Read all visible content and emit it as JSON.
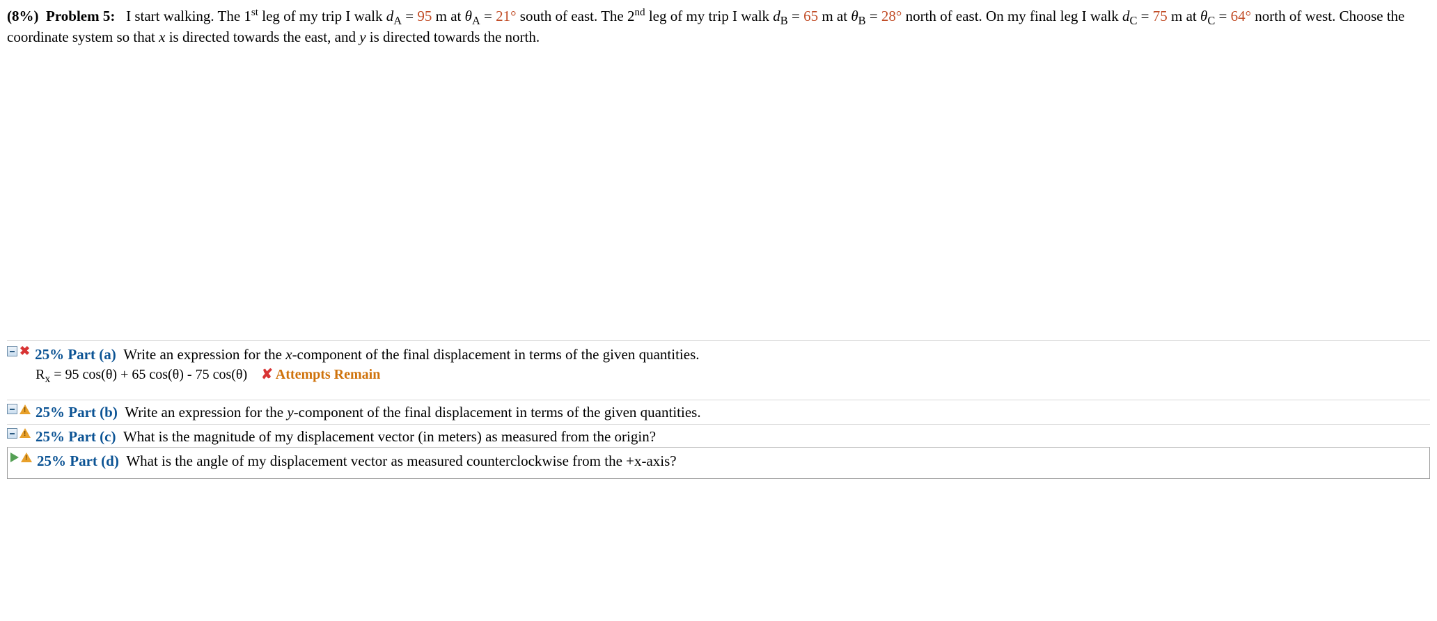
{
  "problem": {
    "percent": "(8%)",
    "label": "Problem 5:",
    "text_prefix": "I start walking. The 1",
    "sup_st": "st",
    "text_1": " leg of my trip I walk ",
    "dA_sym": "d",
    "dA_sub": "A",
    "eq": " = ",
    "dA_val": "95",
    "m_at": " m at ",
    "thA_sym": "θ",
    "thA_sub": "A",
    "thA_val": "21",
    "deg": "°",
    "dirA": " south of east. The 2",
    "sup_nd": "nd",
    "text_2": " leg of my trip I walk ",
    "dB_sym": "d",
    "dB_sub": "B",
    "dB_val": "65",
    "thB_sym": "θ",
    "thB_sub": "B",
    "thB_val": "28",
    "dirB": " north of east. On my final leg I walk ",
    "dC_sym": "d",
    "dC_sub": "C",
    "dC_val": "75",
    "thC_sym": "θ",
    "thC_sub": "C",
    "thC_val": "64",
    "dirC": " north of west. Choose the coordinate system so that ",
    "x_it": "x",
    "text_3": " is directed towards the east, and ",
    "y_it": "y",
    "text_4": " is directed towards the north."
  },
  "parts": {
    "a": {
      "pct": "25%",
      "label": "Part (a)",
      "text1": "Write an expression for the ",
      "xit": "x",
      "text2": "-component of the final displacement in terms of the given quantities.",
      "answer_lhs_sym": "R",
      "answer_lhs_sub": "x",
      "answer_rhs": " = 95 cos(θ) + 65 cos(θ) - 75 cos(θ)",
      "attempts_x": "✘",
      "attempts_text": " Attempts Remain"
    },
    "b": {
      "pct": "25%",
      "label": "Part (b)",
      "text1": "Write an expression for the ",
      "yit": "y",
      "text2": "-component of the final displacement in terms of the given quantities."
    },
    "c": {
      "pct": "25%",
      "label": "Part (c)",
      "text": "What is the magnitude of my displacement vector (in meters) as measured from the origin?"
    },
    "d": {
      "pct": "25%",
      "label": "Part (d)",
      "text": "What is the angle of my displacement vector as measured counterclockwise from the +x-axis?"
    }
  }
}
